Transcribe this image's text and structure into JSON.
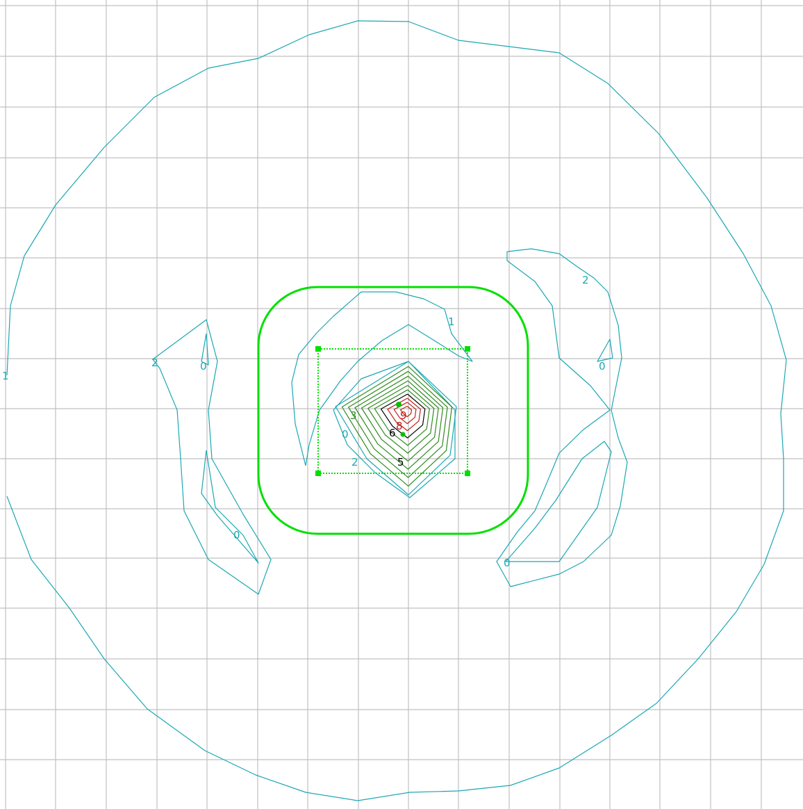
{
  "colors": {
    "grid": "#c0c0c0",
    "contour_cyan": "#1aa7b3",
    "selection_green": "#00e000",
    "inner_green": "#2e8b1e",
    "inner_dark": "#000000",
    "inner_red": "#c0201a"
  },
  "contour_labels": [
    {
      "id": "label-1-left",
      "text": "1",
      "color": "contour_cyan"
    },
    {
      "id": "label-2-left",
      "text": "2",
      "color": "contour_cyan"
    },
    {
      "id": "label-0-left-top",
      "text": "0",
      "color": "contour_cyan"
    },
    {
      "id": "label-0-left-bottom",
      "text": "0",
      "color": "contour_cyan"
    },
    {
      "id": "label-1-center",
      "text": "1",
      "color": "contour_cyan"
    },
    {
      "id": "label-2-right",
      "text": "2",
      "color": "contour_cyan"
    },
    {
      "id": "label-0-right-top",
      "text": "0",
      "color": "contour_cyan"
    },
    {
      "id": "label-0-right-bottom",
      "text": "0",
      "color": "contour_cyan"
    },
    {
      "id": "label-3-center",
      "text": "3",
      "color": "inner_green"
    },
    {
      "id": "label-0-center",
      "text": "0",
      "color": "contour_cyan"
    },
    {
      "id": "label-2-center",
      "text": "2",
      "color": "contour_cyan"
    },
    {
      "id": "label-5-center",
      "text": "5",
      "color": "inner_dark"
    },
    {
      "id": "label-6-center",
      "text": "6",
      "color": "inner_dark"
    },
    {
      "id": "label-9-center",
      "text": "9",
      "color": "inner_red"
    },
    {
      "id": "label-8-center",
      "text": "8",
      "color": "inner_red"
    }
  ]
}
